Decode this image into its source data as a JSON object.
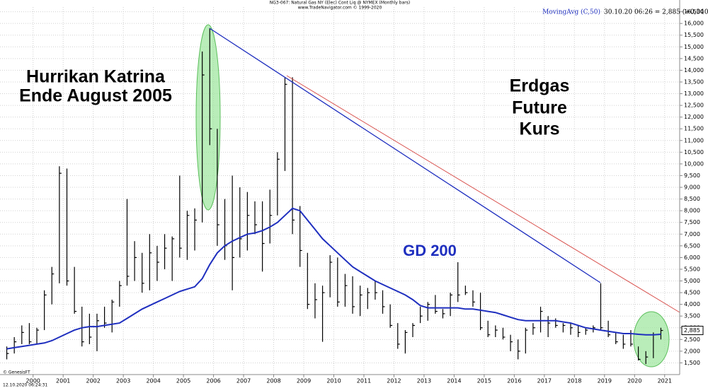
{
  "chart_data": {
    "type": "ohlc",
    "title": "NG3-067: Natural Gas NY (Elec) Cont Liq @ NYMEX (Monthly bars)",
    "subtitle": "www.TradeNavigator.com © 1999-2020",
    "indicator_name": "MovingAvg (C,50)",
    "indicator_info": "30.10.20 06:26 = 2,885 (+0,340)",
    "footer": [
      "© GenesisFT",
      "12.10.2020 06:24:31"
    ],
    "annotations": [
      "Hurrikan Katrina",
      "Ende August 2005",
      "Erdgas",
      "Future",
      "Kurs",
      "GD 200"
    ],
    "bar_color": "#000000",
    "ma_color": "#1f2fbf",
    "grid": true,
    "x": [
      1999.125,
      1999.375,
      1999.625,
      1999.875,
      2000.125,
      2000.375,
      2000.625,
      2000.875,
      2001.125,
      2001.375,
      2001.625,
      2001.875,
      2002.125,
      2002.375,
      2002.625,
      2002.875,
      2003.125,
      2003.375,
      2003.625,
      2003.875,
      2004.125,
      2004.375,
      2004.625,
      2004.875,
      2005.125,
      2005.375,
      2005.625,
      2005.875,
      2006.125,
      2006.375,
      2006.625,
      2006.875,
      2007.125,
      2007.375,
      2007.625,
      2007.875,
      2008.125,
      2008.375,
      2008.625,
      2008.875,
      2009.125,
      2009.375,
      2009.625,
      2009.875,
      2010.125,
      2010.375,
      2010.625,
      2010.875,
      2011.125,
      2011.375,
      2011.625,
      2011.875,
      2012.125,
      2012.375,
      2012.625,
      2012.875,
      2013.125,
      2013.375,
      2013.625,
      2013.875,
      2014.125,
      2014.375,
      2014.625,
      2014.875,
      2015.125,
      2015.375,
      2015.625,
      2015.875,
      2016.125,
      2016.375,
      2016.625,
      2016.875,
      2017.125,
      2017.375,
      2017.625,
      2017.875,
      2018.125,
      2018.375,
      2018.625,
      2018.875,
      2019.125,
      2019.375,
      2019.625,
      2019.875,
      2020.125,
      2020.375,
      2020.625,
      2020.875
    ],
    "high": [
      2.2,
      2.6,
      3.1,
      3.2,
      3.0,
      4.6,
      5.6,
      9.9,
      9.8,
      5.6,
      3.9,
      3.6,
      3.6,
      3.9,
      4.2,
      5.0,
      8.5,
      6.7,
      6.2,
      7.0,
      6.5,
      7.0,
      6.9,
      9.5,
      8.0,
      8.1,
      14.8,
      15.8,
      11.5,
      8.5,
      9.5,
      9.0,
      8.8,
      8.4,
      8.4,
      8.9,
      10.5,
      13.7,
      13.7,
      8.2,
      6.2,
      4.9,
      4.8,
      6.1,
      6.0,
      5.3,
      5.2,
      4.8,
      4.7,
      5.0,
      4.6,
      4.0,
      3.2,
      2.9,
      3.2,
      3.9,
      4.1,
      4.4,
      3.8,
      4.5,
      5.8,
      4.8,
      4.6,
      4.5,
      3.3,
      3.1,
      3.0,
      2.7,
      2.5,
      3.0,
      3.2,
      3.9,
      3.5,
      3.4,
      3.2,
      3.2,
      3.1,
      3.0,
      3.1,
      4.9,
      3.3,
      2.8,
      2.7,
      2.9,
      2.2,
      2.0,
      2.8,
      3.0
    ],
    "low": [
      1.65,
      1.9,
      2.3,
      2.3,
      2.3,
      2.9,
      4.0,
      4.9,
      4.8,
      3.6,
      2.2,
      2.3,
      2.0,
      3.0,
      2.8,
      3.9,
      4.8,
      5.0,
      4.5,
      4.6,
      5.0,
      5.5,
      5.0,
      6.0,
      5.9,
      6.3,
      7.5,
      10.8,
      6.5,
      5.9,
      4.6,
      6.0,
      6.3,
      7.0,
      5.4,
      6.6,
      7.8,
      9.7,
      7.0,
      5.6,
      3.8,
      3.4,
      2.4,
      4.3,
      3.9,
      3.9,
      3.6,
      3.5,
      3.8,
      4.2,
      3.6,
      3.0,
      2.1,
      1.9,
      2.6,
      3.2,
      3.3,
      3.6,
      3.4,
      3.5,
      4.1,
      4.4,
      3.9,
      2.9,
      2.6,
      2.6,
      2.5,
      2.0,
      1.65,
      1.9,
      2.7,
      2.8,
      2.6,
      3.0,
      2.8,
      2.7,
      2.6,
      2.7,
      2.8,
      2.9,
      2.6,
      2.3,
      2.1,
      2.2,
      1.6,
      1.45,
      1.7,
      2.5
    ],
    "close": [
      1.9,
      2.4,
      2.8,
      2.4,
      2.9,
      4.4,
      5.3,
      9.6,
      5.0,
      3.7,
      2.4,
      2.6,
      3.3,
      3.2,
      4.1,
      4.8,
      5.2,
      6.0,
      4.9,
      6.2,
      5.8,
      6.4,
      6.8,
      6.4,
      7.8,
      7.6,
      13.8,
      11.5,
      7.4,
      6.5,
      6.0,
      6.8,
      7.8,
      7.4,
      6.6,
      7.8,
      10.2,
      13.4,
      7.6,
      6.3,
      4.0,
      4.2,
      4.5,
      5.8,
      4.1,
      4.8,
      3.9,
      4.4,
      4.5,
      4.5,
      3.9,
      3.1,
      2.3,
      2.8,
      3.1,
      3.5,
      4.0,
      3.7,
      3.6,
      4.4,
      4.4,
      4.5,
      4.1,
      3.0,
      2.7,
      2.9,
      2.6,
      2.4,
      2.0,
      2.9,
      3.0,
      3.7,
      3.2,
      3.1,
      3.1,
      3.0,
      2.8,
      2.9,
      3.0,
      3.0,
      2.7,
      2.4,
      2.3,
      2.3,
      1.65,
      1.75,
      2.7,
      2.885
    ],
    "moving_average": [
      2.1,
      2.15,
      2.2,
      2.25,
      2.3,
      2.35,
      2.45,
      2.6,
      2.75,
      2.9,
      3.0,
      3.05,
      3.05,
      3.1,
      3.15,
      3.2,
      3.4,
      3.6,
      3.8,
      3.95,
      4.1,
      4.25,
      4.4,
      4.55,
      4.65,
      4.75,
      5.1,
      5.7,
      6.2,
      6.5,
      6.7,
      6.85,
      7.0,
      7.05,
      7.15,
      7.3,
      7.5,
      7.8,
      8.1,
      8.0,
      7.6,
      7.2,
      6.8,
      6.5,
      6.2,
      5.9,
      5.6,
      5.4,
      5.2,
      5.0,
      4.85,
      4.7,
      4.55,
      4.4,
      4.2,
      3.95,
      3.85,
      3.85,
      3.85,
      3.85,
      3.85,
      3.8,
      3.8,
      3.75,
      3.7,
      3.65,
      3.55,
      3.45,
      3.35,
      3.3,
      3.3,
      3.3,
      3.3,
      3.3,
      3.25,
      3.2,
      3.1,
      3.0,
      2.95,
      2.9,
      2.85,
      2.8,
      2.75,
      2.75,
      2.72,
      2.7,
      2.7,
      2.72
    ],
    "last_price": {
      "value": 2.885,
      "label": "2,885"
    },
    "xlim": [
      1998.9,
      2021.5
    ],
    "xticks": [
      2000,
      2001,
      2002,
      2003,
      2004,
      2005,
      2006,
      2007,
      2008,
      2009,
      2010,
      2011,
      2012,
      2013,
      2014,
      2015,
      2016,
      2017,
      2018,
      2019,
      2020,
      2021
    ],
    "ylim": [
      1.0,
      16.7
    ],
    "yticks": [
      {
        "value": 1.5,
        "label": "1,500"
      },
      {
        "value": 2.0,
        "label": "2,000"
      },
      {
        "value": 2.5,
        "label": "2,500"
      },
      {
        "value": 3.0,
        "label": "3,000"
      },
      {
        "value": 3.5,
        "label": "3,500"
      },
      {
        "value": 4.0,
        "label": "4,000"
      },
      {
        "value": 4.5,
        "label": "4,500"
      },
      {
        "value": 5.0,
        "label": "5,000"
      },
      {
        "value": 5.5,
        "label": "5,500"
      },
      {
        "value": 6.0,
        "label": "6,000"
      },
      {
        "value": 6.5,
        "label": "6,500"
      },
      {
        "value": 7.0,
        "label": "7,000"
      },
      {
        "value": 7.5,
        "label": "7,500"
      },
      {
        "value": 8.0,
        "label": "8,000"
      },
      {
        "value": 8.5,
        "label": "8,500"
      },
      {
        "value": 9.0,
        "label": "9,000"
      },
      {
        "value": 9.5,
        "label": "9,500"
      },
      {
        "value": 10.0,
        "label": "10,000"
      },
      {
        "value": 10.5,
        "label": "10,500"
      },
      {
        "value": 11.0,
        "label": "11,000"
      },
      {
        "value": 11.5,
        "label": "11,500"
      },
      {
        "value": 12.0,
        "label": "12,000"
      },
      {
        "value": 12.5,
        "label": "12,500"
      },
      {
        "value": 13.0,
        "label": "13,000"
      },
      {
        "value": 13.5,
        "label": "13,500"
      },
      {
        "value": 14.0,
        "label": "14,000"
      },
      {
        "value": 14.5,
        "label": "14,500"
      },
      {
        "value": 15.0,
        "label": "15,000"
      },
      {
        "value": 15.5,
        "label": "15,500"
      },
      {
        "value": 16.0,
        "label": "16,000"
      },
      {
        "value": 16.5,
        "label": "16,500"
      }
    ]
  }
}
